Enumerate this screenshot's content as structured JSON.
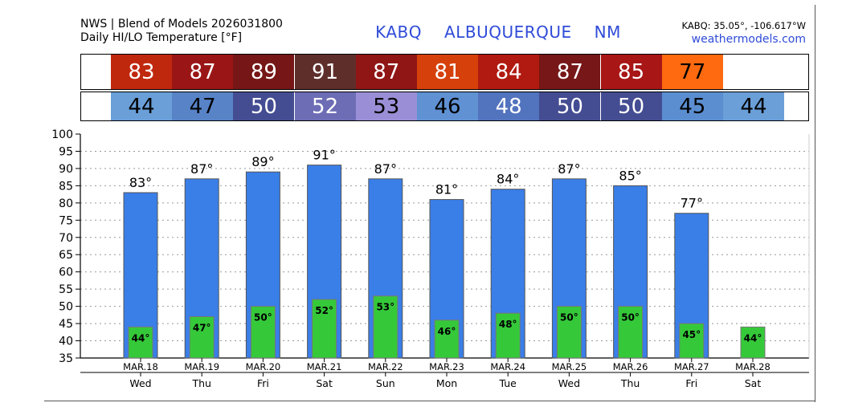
{
  "header": {
    "line1": "NWS | Blend of Models 2026031800",
    "line2": "Daily HI/LO Temperature [°F]",
    "station": "KABQ",
    "city": "ALBUQUERQUE",
    "state": "NM",
    "coords": "KABQ: 35.05°, -106.617°W",
    "site": "weathermodels.com"
  },
  "colors": {
    "hi_bar": "#3a7ee8",
    "lo_bar": "#35c93a",
    "grid": "#999999"
  },
  "chart_data": {
    "type": "bar",
    "title": "Daily HI/LO Temperature [°F]",
    "ylim": [
      35,
      100
    ],
    "yticks": [
      35,
      40,
      45,
      50,
      55,
      60,
      65,
      70,
      75,
      80,
      85,
      90,
      95,
      100
    ],
    "grid": true,
    "days": [
      {
        "date": "MAR.18",
        "dow": "Wed",
        "hi": 83,
        "lo": 44,
        "hi_label": "83°",
        "lo_label": "44°",
        "hi_color": "#c0280e",
        "lo_color": "#6a9fd8"
      },
      {
        "date": "MAR.19",
        "dow": "Thu",
        "hi": 87,
        "lo": 47,
        "hi_label": "87°",
        "lo_label": "47°",
        "hi_color": "#9a1616",
        "lo_color": "#5883c7"
      },
      {
        "date": "MAR.20",
        "dow": "Fri",
        "hi": 89,
        "lo": 50,
        "hi_label": "89°",
        "lo_label": "50°",
        "hi_color": "#761616",
        "lo_color": "#444d92"
      },
      {
        "date": "MAR.21",
        "dow": "Sat",
        "hi": 91,
        "lo": 52,
        "hi_label": "91°",
        "lo_label": "52°",
        "hi_color": "#5e2e2b",
        "lo_color": "#6d6db6"
      },
      {
        "date": "MAR.22",
        "dow": "Sun",
        "hi": 87,
        "lo": 53,
        "hi_label": "87°",
        "lo_label": "53°",
        "hi_color": "#901515",
        "lo_color": "#9a8fd6"
      },
      {
        "date": "MAR.23",
        "dow": "Mon",
        "hi": 81,
        "lo": 46,
        "hi_label": "81°",
        "lo_label": "46°",
        "hi_color": "#d6400a",
        "lo_color": "#5f91d3"
      },
      {
        "date": "MAR.24",
        "dow": "Tue",
        "hi": 84,
        "lo": 48,
        "hi_label": "84°",
        "lo_label": "48°",
        "hi_color": "#b11a10",
        "lo_color": "#5273be"
      },
      {
        "date": "MAR.25",
        "dow": "Wed",
        "hi": 87,
        "lo": 50,
        "hi_label": "87°",
        "lo_label": "50°",
        "hi_color": "#771717",
        "lo_color": "#444d92"
      },
      {
        "date": "MAR.26",
        "dow": "Thu",
        "hi": 85,
        "lo": 50,
        "hi_label": "85°",
        "lo_label": "50°",
        "hi_color": "#a81616",
        "lo_color": "#444d92"
      },
      {
        "date": "MAR.27",
        "dow": "Fri",
        "hi": 77,
        "lo": 45,
        "hi_label": "77°",
        "lo_label": "45°",
        "hi_color": "#ff6a10",
        "lo_color": "#5b8ed0"
      },
      {
        "date": "MAR.28",
        "dow": "Sat",
        "hi": null,
        "lo": 44,
        "hi_label": "",
        "lo_label": "44°",
        "hi_color": "",
        "lo_color": "#6a9fd8"
      }
    ]
  }
}
